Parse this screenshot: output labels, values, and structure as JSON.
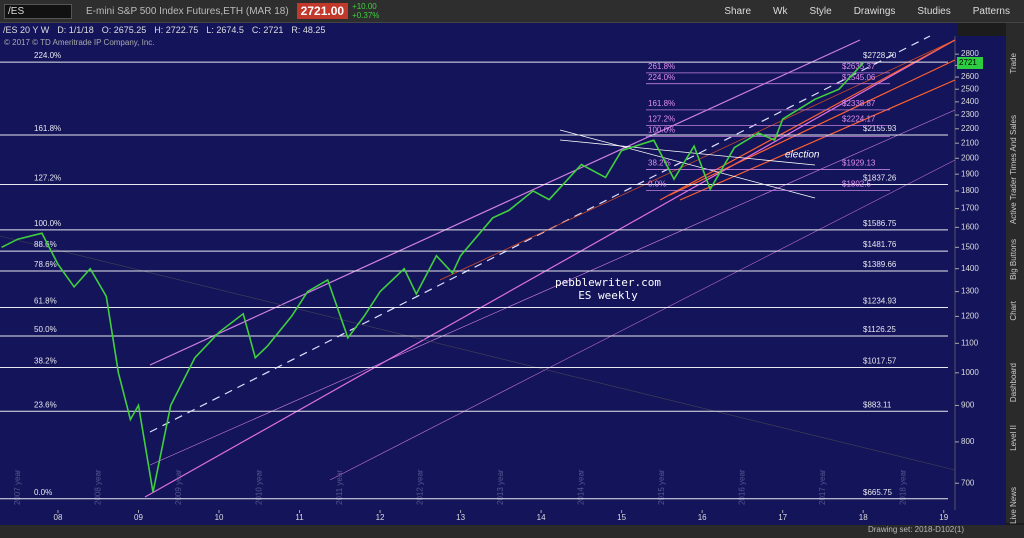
{
  "toolbar": {
    "symbol": "/ES",
    "description": "E-mini S&P 500 Index Futures,ETH (MAR 18)",
    "last": "2721.00",
    "change": "+10.00",
    "change_pct": "+0.37%",
    "buttons": [
      "Share",
      "Wk",
      "Style",
      "Drawings",
      "Studies",
      "Patterns"
    ]
  },
  "info": [
    "/ES 20 Y W",
    "D: 1/1/18",
    "O: 2675.25",
    "H: 2722.75",
    "L: 2674.5",
    "C: 2721",
    "R: 48.25"
  ],
  "copyright": "© 2017 © TD Ameritrade IP Company, Inc.",
  "watermark": [
    "pebblewriter.com",
    "ES weekly"
  ],
  "annotation": "election",
  "side_tabs": [
    "Trade",
    "Times And Sales",
    "Active Trader",
    "Big Buttons",
    "Chart",
    "Dashboard",
    "Level II",
    "Live News"
  ],
  "status": "Drawing set: 2018-D102(1)",
  "chart_data": {
    "type": "line",
    "log_scale": true,
    "ylim": [
      642,
      2969
    ],
    "yticks": [
      700,
      800,
      900,
      1000,
      1100,
      1200,
      1300,
      1400,
      1500,
      1600,
      1700,
      1800,
      1900,
      2000,
      2100,
      2200,
      2300,
      2400,
      2500,
      2600,
      2700,
      2800
    ],
    "xlim": [
      2007.28,
      2019.14
    ],
    "xticks": [
      {
        "value": 2008,
        "label": "08"
      },
      {
        "value": 2009,
        "label": "09"
      },
      {
        "value": 2010,
        "label": "10"
      },
      {
        "value": 2011,
        "label": "11"
      },
      {
        "value": 2012,
        "label": "12"
      },
      {
        "value": 2013,
        "label": "13"
      },
      {
        "value": 2014,
        "label": "14"
      },
      {
        "value": 2015,
        "label": "15"
      },
      {
        "value": 2016,
        "label": "16"
      },
      {
        "value": 2017,
        "label": "17"
      },
      {
        "value": 2018,
        "label": "18"
      },
      {
        "value": 2019,
        "label": "19"
      }
    ],
    "year_marks": [
      {
        "value": 2007.5,
        "label": "2007 year"
      },
      {
        "value": 2008.5,
        "label": "2008 year"
      },
      {
        "value": 2009.5,
        "label": "2009 year"
      },
      {
        "value": 2010.5,
        "label": "2010 year"
      },
      {
        "value": 2011.5,
        "label": "2011 year"
      },
      {
        "value": 2012.5,
        "label": "2012 year"
      },
      {
        "value": 2013.5,
        "label": "2013 year"
      },
      {
        "value": 2014.5,
        "label": "2014 year"
      },
      {
        "value": 2015.5,
        "label": "2015 year"
      },
      {
        "value": 2016.5,
        "label": "2016 year"
      },
      {
        "value": 2017.5,
        "label": "2017 year"
      },
      {
        "value": 2018.5,
        "label": "2018 year"
      }
    ],
    "last_price": {
      "value": 2721,
      "label": "2721"
    },
    "series": [
      {
        "name": "/ES",
        "color": "#3fcf3f",
        "x": [
          2007.3,
          2007.5,
          2007.8,
          2008.0,
          2008.2,
          2008.4,
          2008.6,
          2008.75,
          2008.9,
          2009.0,
          2009.18,
          2009.4,
          2009.7,
          2010.0,
          2010.3,
          2010.45,
          2010.6,
          2010.9,
          2011.1,
          2011.35,
          2011.6,
          2011.8,
          2012.0,
          2012.3,
          2012.45,
          2012.7,
          2012.9,
          2013.0,
          2013.4,
          2013.6,
          2013.9,
          2014.1,
          2014.5,
          2014.8,
          2015.0,
          2015.4,
          2015.65,
          2015.9,
          2016.1,
          2016.4,
          2016.7,
          2016.9,
          2017.0,
          2017.4,
          2017.7,
          2018.0
        ],
        "values": [
          1500,
          1540,
          1570,
          1420,
          1320,
          1400,
          1280,
          1000,
          860,
          900,
          680,
          900,
          1050,
          1140,
          1210,
          1050,
          1090,
          1200,
          1300,
          1350,
          1120,
          1200,
          1300,
          1400,
          1290,
          1460,
          1380,
          1460,
          1650,
          1690,
          1800,
          1750,
          1960,
          1880,
          2050,
          2120,
          1870,
          2080,
          1810,
          2070,
          2170,
          2120,
          2270,
          2420,
          2500,
          2721
        ]
      }
    ],
    "fib_major": [
      {
        "label": "0.0%",
        "value": 665.75,
        "price_label": "$665.75"
      },
      {
        "label": "23.6%",
        "value": 883.11,
        "price_label": "$883.11"
      },
      {
        "label": "38.2%",
        "value": 1017.57,
        "price_label": "$1017.57"
      },
      {
        "label": "50.0%",
        "value": 1126.25,
        "price_label": "$1126.25"
      },
      {
        "label": "61.8%",
        "value": 1234.93,
        "price_label": "$1234.93"
      },
      {
        "label": "78.6%",
        "value": 1389.66,
        "price_label": "$1389.66"
      },
      {
        "label": "88.6%",
        "value": 1481.76,
        "price_label": "$1481.76"
      },
      {
        "label": "100.0%",
        "value": 1586.75,
        "price_label": "$1586.75"
      },
      {
        "label": "127.2%",
        "value": 1837.26,
        "price_label": "$1837.26"
      },
      {
        "label": "161.8%",
        "value": 2155.93,
        "price_label": "$2155.93"
      },
      {
        "label": "224.0%",
        "value": 2728.7,
        "price_label": "$2728.70"
      }
    ],
    "fib_minor": [
      {
        "label": "0.0%",
        "value": 1802.5,
        "price_label": "$1802.5"
      },
      {
        "label": "38.2%",
        "value": 1929.13,
        "price_label": "$1929.13"
      },
      {
        "label": "100.0%",
        "value": 2145
      },
      {
        "label": "127.2%",
        "value": 2224.17,
        "price_label": "$2224.17"
      },
      {
        "label": "161.8%",
        "value": 2338.87,
        "price_label": "$2338.87"
      },
      {
        "label": "224.0%",
        "value": 2545.06,
        "price_label": "$2545.06"
      },
      {
        "label": "261.8%",
        "value": 2635.37,
        "price_label": "$2635.37"
      }
    ]
  }
}
